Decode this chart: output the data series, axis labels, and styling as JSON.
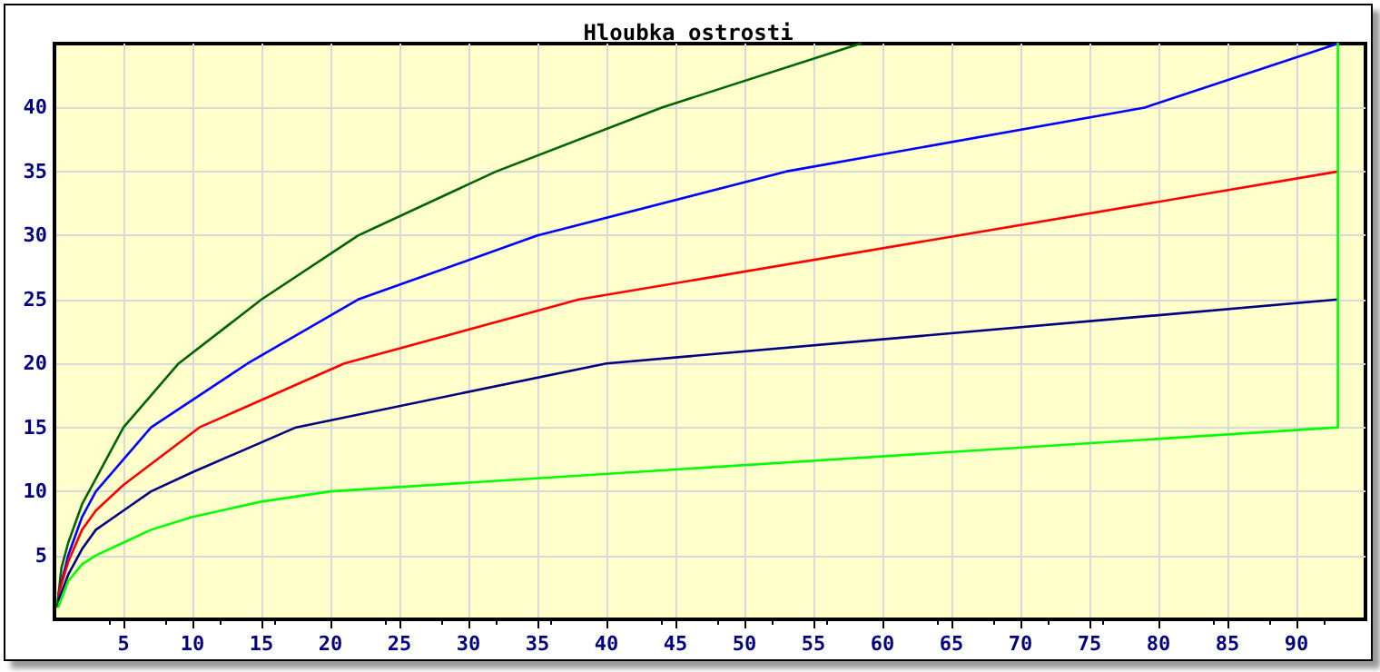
{
  "chart_data": {
    "type": "line",
    "title": "Hloubka ostrosti",
    "xlim": [
      0,
      95
    ],
    "xticks": [
      5,
      10,
      15,
      20,
      25,
      30,
      35,
      40,
      45,
      50,
      55,
      60,
      65,
      70,
      75,
      80,
      85,
      90
    ],
    "ylim": [
      0,
      45
    ],
    "yticks": [
      5,
      10,
      15,
      20,
      25,
      30,
      35,
      40
    ],
    "grid": true,
    "marker": "none",
    "line_style": "solid",
    "series": [
      {
        "color": "#006400",
        "x": [
          0.2,
          0.5,
          1,
          2,
          3,
          5,
          7,
          9,
          15,
          22,
          32,
          44,
          58.4
        ],
        "values": [
          1,
          4,
          6,
          9,
          11,
          15,
          17.5,
          20,
          25,
          30,
          35,
          40,
          45
        ]
      },
      {
        "color": "#0000ff",
        "x": [
          0.3,
          1,
          2,
          3,
          5,
          7,
          14,
          22,
          35,
          53,
          79,
          93
        ],
        "values": [
          2,
          5,
          8,
          10,
          12.5,
          15,
          20,
          25,
          30,
          35,
          40,
          45
        ]
      },
      {
        "color": "#ff0000",
        "x": [
          0.3,
          1,
          2,
          3,
          5,
          10.5,
          21,
          38,
          93
        ],
        "values": [
          2,
          4.5,
          7,
          8.5,
          10.5,
          15,
          20,
          25,
          35
        ]
      },
      {
        "color": "#000080",
        "x": [
          0.3,
          1,
          2,
          3,
          5,
          7,
          10,
          17.5,
          40,
          93
        ],
        "values": [
          1.5,
          3.5,
          5.5,
          7,
          8.5,
          10,
          11.5,
          15,
          20,
          25
        ]
      },
      {
        "color": "#00ff00",
        "x": [
          0.3,
          1,
          2,
          3,
          5,
          7,
          10,
          15,
          20,
          93,
          93
        ],
        "values": [
          1,
          3,
          4.3,
          5,
          6,
          7,
          8,
          9.2,
          10,
          15,
          45
        ]
      }
    ]
  }
}
